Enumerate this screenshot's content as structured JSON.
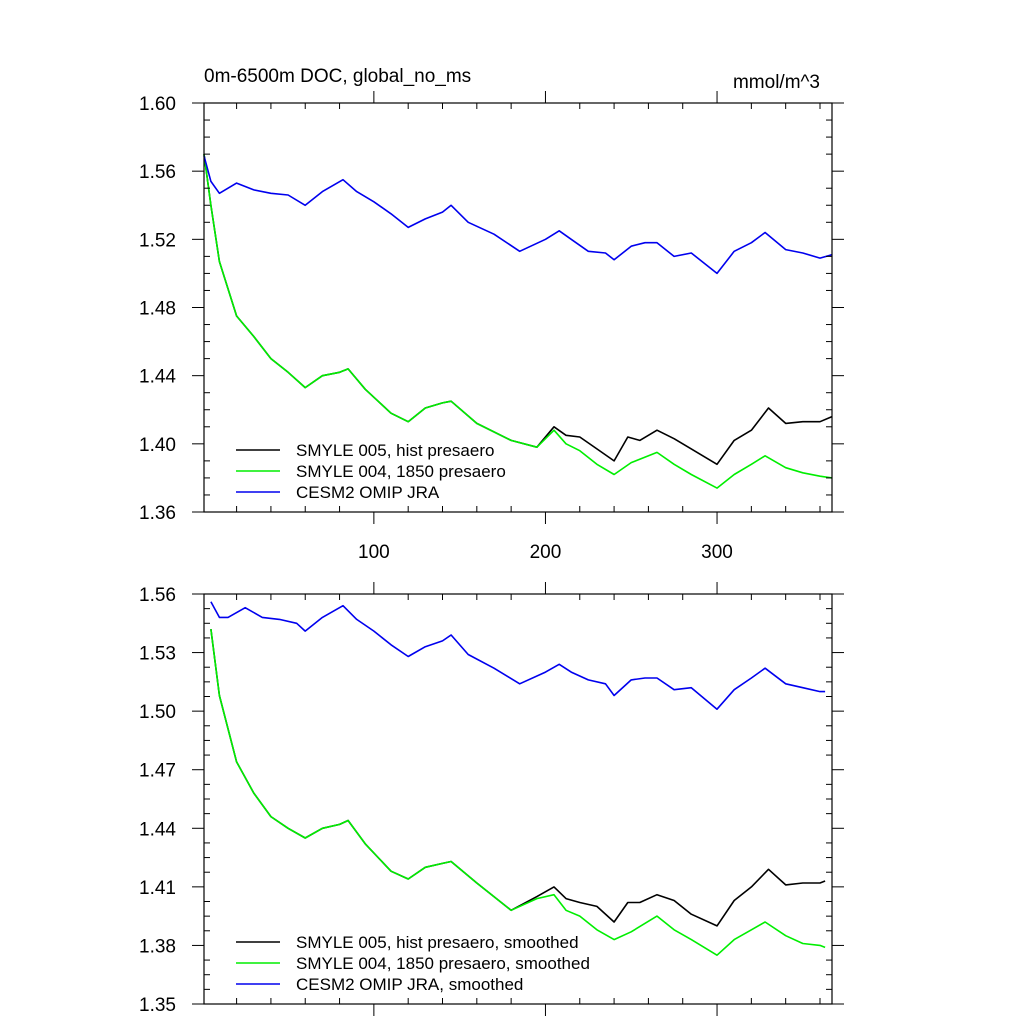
{
  "chart_data": [
    {
      "type": "line",
      "title": "0m-6500m DOC, global_no_ms",
      "units": "mmol/m^3",
      "xlabel": "",
      "ylabel": "",
      "xlim": [
        1,
        367
      ],
      "ylim": [
        1.36,
        1.6
      ],
      "xticks": [
        100,
        200,
        300
      ],
      "xtick_labels": [
        "100",
        "200",
        "300"
      ],
      "yticks": [
        1.36,
        1.4,
        1.44,
        1.48,
        1.52,
        1.56,
        1.6
      ],
      "ytick_labels": [
        "1.36",
        "1.40",
        "1.44",
        "1.48",
        "1.52",
        "1.56",
        "1.60"
      ],
      "grid": false,
      "legend_position": "bottom-left",
      "series": [
        {
          "name": "SMYLE 005, hist presaero",
          "color": "#000000",
          "x": [
            1,
            5,
            10,
            20,
            30,
            40,
            50,
            60,
            70,
            80,
            85,
            95,
            110,
            120,
            130,
            140,
            145,
            160,
            180,
            195,
            205,
            212,
            220,
            230,
            240,
            248,
            255,
            265,
            275,
            285,
            300,
            310,
            320,
            330,
            340,
            350,
            360,
            367
          ],
          "values": [
            1.57,
            1.54,
            1.507,
            1.475,
            1.463,
            1.45,
            1.442,
            1.433,
            1.44,
            1.442,
            1.444,
            1.432,
            1.418,
            1.413,
            1.421,
            1.424,
            1.425,
            1.412,
            1.402,
            1.398,
            1.41,
            1.405,
            1.404,
            1.397,
            1.39,
            1.404,
            1.402,
            1.408,
            1.403,
            1.397,
            1.388,
            1.402,
            1.408,
            1.421,
            1.412,
            1.413,
            1.413,
            1.416
          ]
        },
        {
          "name": "SMYLE 004, 1850 presaero",
          "color": "#00ee00",
          "x": [
            1,
            5,
            10,
            20,
            30,
            40,
            50,
            60,
            70,
            80,
            85,
            95,
            110,
            120,
            130,
            140,
            145,
            160,
            180,
            195,
            205,
            212,
            220,
            230,
            240,
            250,
            265,
            275,
            285,
            300,
            310,
            320,
            328,
            340,
            350,
            360,
            367
          ],
          "values": [
            1.57,
            1.54,
            1.507,
            1.475,
            1.463,
            1.45,
            1.442,
            1.433,
            1.44,
            1.442,
            1.444,
            1.432,
            1.418,
            1.413,
            1.421,
            1.424,
            1.425,
            1.412,
            1.402,
            1.398,
            1.408,
            1.4,
            1.396,
            1.388,
            1.382,
            1.389,
            1.395,
            1.388,
            1.382,
            1.374,
            1.382,
            1.388,
            1.393,
            1.386,
            1.383,
            1.381,
            1.38
          ]
        },
        {
          "name": "CESM2 OMIP JRA",
          "color": "#0000ee",
          "x": [
            1,
            5,
            10,
            20,
            30,
            40,
            50,
            60,
            70,
            82,
            90,
            100,
            110,
            120,
            130,
            140,
            145,
            155,
            170,
            185,
            200,
            208,
            215,
            225,
            235,
            240,
            250,
            258,
            265,
            275,
            285,
            300,
            310,
            320,
            328,
            340,
            350,
            360,
            367
          ],
          "values": [
            1.569,
            1.554,
            1.547,
            1.553,
            1.549,
            1.547,
            1.546,
            1.54,
            1.548,
            1.555,
            1.548,
            1.542,
            1.535,
            1.527,
            1.532,
            1.536,
            1.54,
            1.53,
            1.523,
            1.513,
            1.52,
            1.525,
            1.52,
            1.513,
            1.512,
            1.508,
            1.516,
            1.518,
            1.518,
            1.51,
            1.512,
            1.5,
            1.513,
            1.518,
            1.524,
            1.514,
            1.512,
            1.509,
            1.511
          ]
        }
      ]
    },
    {
      "type": "line",
      "title": "",
      "xlabel": "",
      "ylabel": "",
      "xlim": [
        1,
        367
      ],
      "ylim": [
        1.35,
        1.56
      ],
      "xticks": [
        100,
        200,
        300
      ],
      "yticks": [
        1.35,
        1.38,
        1.41,
        1.44,
        1.47,
        1.5,
        1.53,
        1.56
      ],
      "ytick_labels": [
        "1.35",
        "1.38",
        "1.41",
        "1.44",
        "1.47",
        "1.50",
        "1.53",
        "1.56"
      ],
      "grid": false,
      "legend_position": "bottom-left",
      "series": [
        {
          "name": "SMYLE 005, hist presaero, smoothed",
          "color": "#000000",
          "x": [
            5,
            10,
            20,
            30,
            40,
            50,
            60,
            70,
            80,
            85,
            95,
            110,
            120,
            130,
            140,
            145,
            160,
            180,
            195,
            205,
            212,
            220,
            230,
            240,
            248,
            255,
            265,
            275,
            285,
            300,
            310,
            320,
            330,
            340,
            350,
            360,
            363
          ],
          "values": [
            1.542,
            1.508,
            1.474,
            1.458,
            1.446,
            1.44,
            1.435,
            1.44,
            1.442,
            1.444,
            1.432,
            1.418,
            1.414,
            1.42,
            1.422,
            1.423,
            1.412,
            1.398,
            1.405,
            1.41,
            1.404,
            1.402,
            1.4,
            1.392,
            1.402,
            1.402,
            1.406,
            1.403,
            1.396,
            1.39,
            1.403,
            1.41,
            1.419,
            1.411,
            1.412,
            1.412,
            1.413
          ]
        },
        {
          "name": "SMYLE 004, 1850 presaero, smoothed",
          "color": "#00ee00",
          "x": [
            5,
            10,
            20,
            30,
            40,
            50,
            60,
            70,
            80,
            85,
            95,
            110,
            120,
            130,
            140,
            145,
            160,
            180,
            195,
            205,
            212,
            220,
            230,
            240,
            250,
            265,
            275,
            285,
            300,
            310,
            320,
            328,
            340,
            350,
            360,
            363
          ],
          "values": [
            1.542,
            1.508,
            1.474,
            1.458,
            1.446,
            1.44,
            1.435,
            1.44,
            1.442,
            1.444,
            1.432,
            1.418,
            1.414,
            1.42,
            1.422,
            1.423,
            1.412,
            1.398,
            1.404,
            1.406,
            1.398,
            1.395,
            1.388,
            1.383,
            1.387,
            1.395,
            1.388,
            1.383,
            1.375,
            1.383,
            1.388,
            1.392,
            1.385,
            1.381,
            1.38,
            1.379
          ]
        },
        {
          "name": "CESM2 OMIP JRA, smoothed",
          "color": "#0000ee",
          "x": [
            5,
            10,
            15,
            25,
            35,
            45,
            55,
            60,
            70,
            82,
            90,
            100,
            110,
            120,
            130,
            140,
            145,
            155,
            170,
            185,
            200,
            208,
            215,
            225,
            235,
            240,
            250,
            258,
            265,
            275,
            285,
            300,
            310,
            320,
            328,
            340,
            350,
            360,
            363
          ],
          "values": [
            1.556,
            1.548,
            1.548,
            1.553,
            1.548,
            1.547,
            1.545,
            1.541,
            1.548,
            1.554,
            1.547,
            1.541,
            1.534,
            1.528,
            1.533,
            1.536,
            1.539,
            1.529,
            1.522,
            1.514,
            1.52,
            1.524,
            1.52,
            1.516,
            1.514,
            1.508,
            1.516,
            1.517,
            1.517,
            1.511,
            1.512,
            1.501,
            1.511,
            1.517,
            1.522,
            1.514,
            1.512,
            1.51,
            1.51
          ]
        }
      ]
    }
  ]
}
